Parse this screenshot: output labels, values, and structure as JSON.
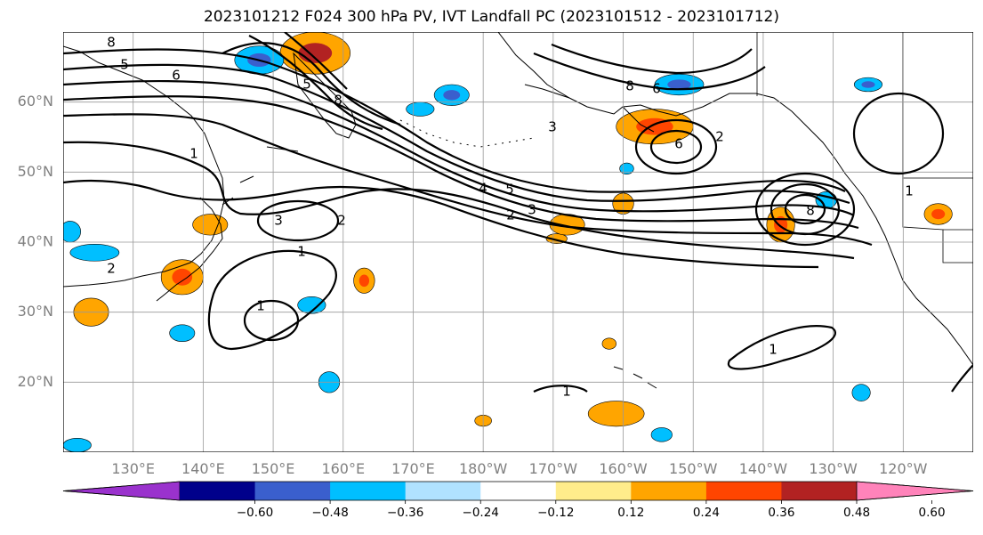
{
  "title": "2023101212 F024 300 hPa PV, IVT Landfall PC (2023101512 - 2023101712)",
  "chart_data": {
    "type": "heatmap",
    "title": "2023101212 F024 300 hPa PV, IVT Landfall PC (2023101512 - 2023101712)",
    "map": {
      "lon_range": [
        120,
        250
      ],
      "lat_range": [
        10,
        70
      ],
      "lat_ticks": [
        {
          "value": 20,
          "label": "20°N"
        },
        {
          "value": 30,
          "label": "30°N"
        },
        {
          "value": 40,
          "label": "40°N"
        },
        {
          "value": 50,
          "label": "50°N"
        },
        {
          "value": 60,
          "label": "60°N"
        }
      ],
      "lon_ticks": [
        {
          "value": 130,
          "label": "130°E"
        },
        {
          "value": 140,
          "label": "140°E"
        },
        {
          "value": 150,
          "label": "150°E"
        },
        {
          "value": 160,
          "label": "160°E"
        },
        {
          "value": 170,
          "label": "170°E"
        },
        {
          "value": 180,
          "label": "180°W"
        },
        {
          "value": 190,
          "label": "170°W"
        },
        {
          "value": 200,
          "label": "160°W"
        },
        {
          "value": 210,
          "label": "150°W"
        },
        {
          "value": 220,
          "label": "140°W"
        },
        {
          "value": 230,
          "label": "130°W"
        },
        {
          "value": 240,
          "label": "120°W"
        }
      ],
      "grid": true
    },
    "colorbar": {
      "levels": [
        -0.72,
        -0.6,
        -0.48,
        -0.36,
        -0.24,
        -0.12,
        0.12,
        0.24,
        0.36,
        0.48,
        0.6,
        0.72
      ],
      "colors": [
        "#9a32cd",
        "#00008b",
        "#3a5fcd",
        "#00bfff",
        "#b0e2ff",
        "#ffffff",
        "#ffec8b",
        "#ffa500",
        "#ff4500",
        "#b22222",
        "#ff83ba"
      ],
      "tick_labels": [
        "−0.60",
        "−0.48",
        "−0.36",
        "−0.24",
        "−0.12",
        "0.12",
        "0.24",
        "0.36",
        "0.48",
        "0.60"
      ],
      "extend": "both"
    },
    "pv_contour_labels": [
      "1",
      "2",
      "3",
      "4",
      "5",
      "6",
      "8"
    ],
    "shaded_regions": [
      {
        "lon": 156,
        "lat": 67,
        "rx": 5,
        "ry": 3,
        "value": 0.5
      },
      {
        "lon": 148,
        "lat": 66,
        "rx": 3.5,
        "ry": 2,
        "value": -0.45
      },
      {
        "lon": 175.5,
        "lat": 61,
        "rx": 2.5,
        "ry": 1.5,
        "value": -0.45
      },
      {
        "lon": 171,
        "lat": 59,
        "rx": 2,
        "ry": 1,
        "value": -0.24
      },
      {
        "lon": 204.5,
        "lat": 56.5,
        "rx": 5.5,
        "ry": 2.5,
        "value": 0.45
      },
      {
        "lon": 208,
        "lat": 62.5,
        "rx": 3.5,
        "ry": 1.5,
        "value": -0.4
      },
      {
        "lon": 235,
        "lat": 62.5,
        "rx": 2,
        "ry": 1,
        "value": -0.4
      },
      {
        "lon": 200,
        "lat": 45.5,
        "rx": 1.5,
        "ry": 1.5,
        "value": 0.3
      },
      {
        "lon": 200.5,
        "lat": 50.5,
        "rx": 1,
        "ry": 0.8,
        "value": -0.3
      },
      {
        "lon": 222.5,
        "lat": 42.5,
        "rx": 2,
        "ry": 2.5,
        "value": 0.45
      },
      {
        "lon": 229,
        "lat": 46,
        "rx": 1.5,
        "ry": 1.2,
        "value": -0.3
      },
      {
        "lon": 245,
        "lat": 44,
        "rx": 2,
        "ry": 1.5,
        "value": 0.4
      },
      {
        "lon": 141,
        "lat": 42.5,
        "rx": 2.5,
        "ry": 1.5,
        "value": 0.3
      },
      {
        "lon": 121,
        "lat": 41.5,
        "rx": 1.5,
        "ry": 1.5,
        "value": -0.3
      },
      {
        "lon": 124.5,
        "lat": 38.5,
        "rx": 3.5,
        "ry": 1.2,
        "value": -0.3
      },
      {
        "lon": 137,
        "lat": 35,
        "rx": 3,
        "ry": 2.5,
        "value": 0.45
      },
      {
        "lon": 124,
        "lat": 30,
        "rx": 2.5,
        "ry": 2,
        "value": 0.35
      },
      {
        "lon": 163,
        "lat": 34.5,
        "rx": 1.5,
        "ry": 1.8,
        "value": 0.38
      },
      {
        "lon": 155.5,
        "lat": 31,
        "rx": 2,
        "ry": 1.2,
        "value": -0.3
      },
      {
        "lon": 137,
        "lat": 27,
        "rx": 1.8,
        "ry": 1.2,
        "value": -0.3
      },
      {
        "lon": 158,
        "lat": 20,
        "rx": 1.5,
        "ry": 1.5,
        "value": -0.3
      },
      {
        "lon": 199,
        "lat": 15.5,
        "rx": 4,
        "ry": 1.8,
        "value": 0.35
      },
      {
        "lon": 180,
        "lat": 14.5,
        "rx": 1.2,
        "ry": 0.8,
        "value": 0.3
      },
      {
        "lon": 198,
        "lat": 25.5,
        "rx": 1,
        "ry": 0.8,
        "value": 0.3
      },
      {
        "lon": 234,
        "lat": 18.5,
        "rx": 1.3,
        "ry": 1.2,
        "value": -0.3
      },
      {
        "lon": 205.5,
        "lat": 12.5,
        "rx": 1.5,
        "ry": 1,
        "value": -0.3
      },
      {
        "lon": 190.5,
        "lat": 40.5,
        "rx": 1.5,
        "ry": 0.7,
        "value": 0.3
      },
      {
        "lon": 192,
        "lat": 42.5,
        "rx": 2.5,
        "ry": 1.5,
        "value": 0.3
      },
      {
        "lon": 122,
        "lat": 11,
        "rx": 2,
        "ry": 1,
        "value": -0.3
      }
    ]
  }
}
